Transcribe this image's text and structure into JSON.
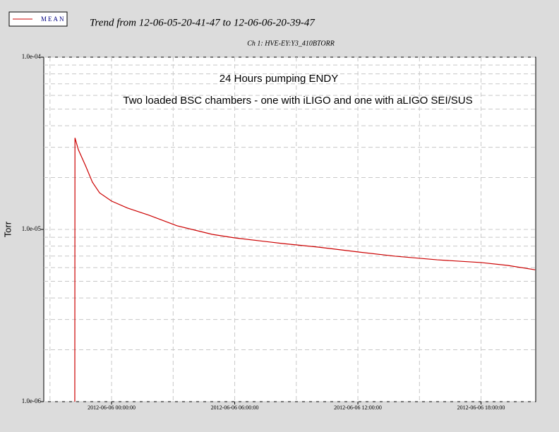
{
  "chart_data": {
    "type": "line",
    "title": "Trend from 12-06-05-20-41-47 to 12-06-06-20-39-47",
    "subtitle": "Ch 1: HVE-EY:Y3_410BTORR",
    "y_label": "Torr",
    "annotations": [
      "24 Hours pumping ENDY",
      "Two loaded BSC chambers - one with iLIGO and one with aLIGO SEI/SUS"
    ],
    "y_scale": "log",
    "grid": true,
    "legend_position": "top-left",
    "xlim": [
      "2012-06-05 20:41:47",
      "2012-06-06 20:39:47"
    ],
    "xticks": [
      "2012-06-06 00:00:00",
      "2012-06-06 06:00:00",
      "2012-06-06 12:00:00",
      "2012-06-06 18:00:00"
    ],
    "ylim": [
      1e-06,
      0.0001
    ],
    "yticks": [
      {
        "value": 1e-06,
        "label": "1.0e-06"
      },
      {
        "value": 1e-05,
        "label": "1.0e-05"
      },
      {
        "value": 0.0001,
        "label": "1.0e-04"
      }
    ],
    "x": [
      "2012-06-05 22:12:30",
      "2012-06-05 22:13:00",
      "2012-06-05 22:23:00",
      "2012-06-05 22:44:00",
      "2012-06-05 23:04:00",
      "2012-06-05 23:25:00",
      "2012-06-06 00:00:00",
      "2012-06-06 00:47:00",
      "2012-06-06 01:49:00",
      "2012-06-06 03:11:00",
      "2012-06-06 04:54:00",
      "2012-06-06 06:00:00",
      "2012-06-06 08:20:00",
      "2012-06-06 10:03:00",
      "2012-06-06 12:00:00",
      "2012-06-06 13:49:00",
      "2012-06-06 15:52:00",
      "2012-06-06 18:00:00",
      "2012-06-06 19:18:00",
      "2012-06-06 20:38:00"
    ],
    "series": [
      {
        "name": "MEAN",
        "color": "#cc0000",
        "values": [
          1e-06,
          3.4e-05,
          2.9e-05,
          2.34e-05,
          1.88e-05,
          1.63e-05,
          1.46e-05,
          1.33e-05,
          1.21e-05,
          1.05e-05,
          9.36e-06,
          8.93e-06,
          8.28e-06,
          7.9e-06,
          7.4e-06,
          6.99e-06,
          6.66e-06,
          6.42e-06,
          6.18e-06,
          5.83e-06
        ]
      }
    ]
  }
}
